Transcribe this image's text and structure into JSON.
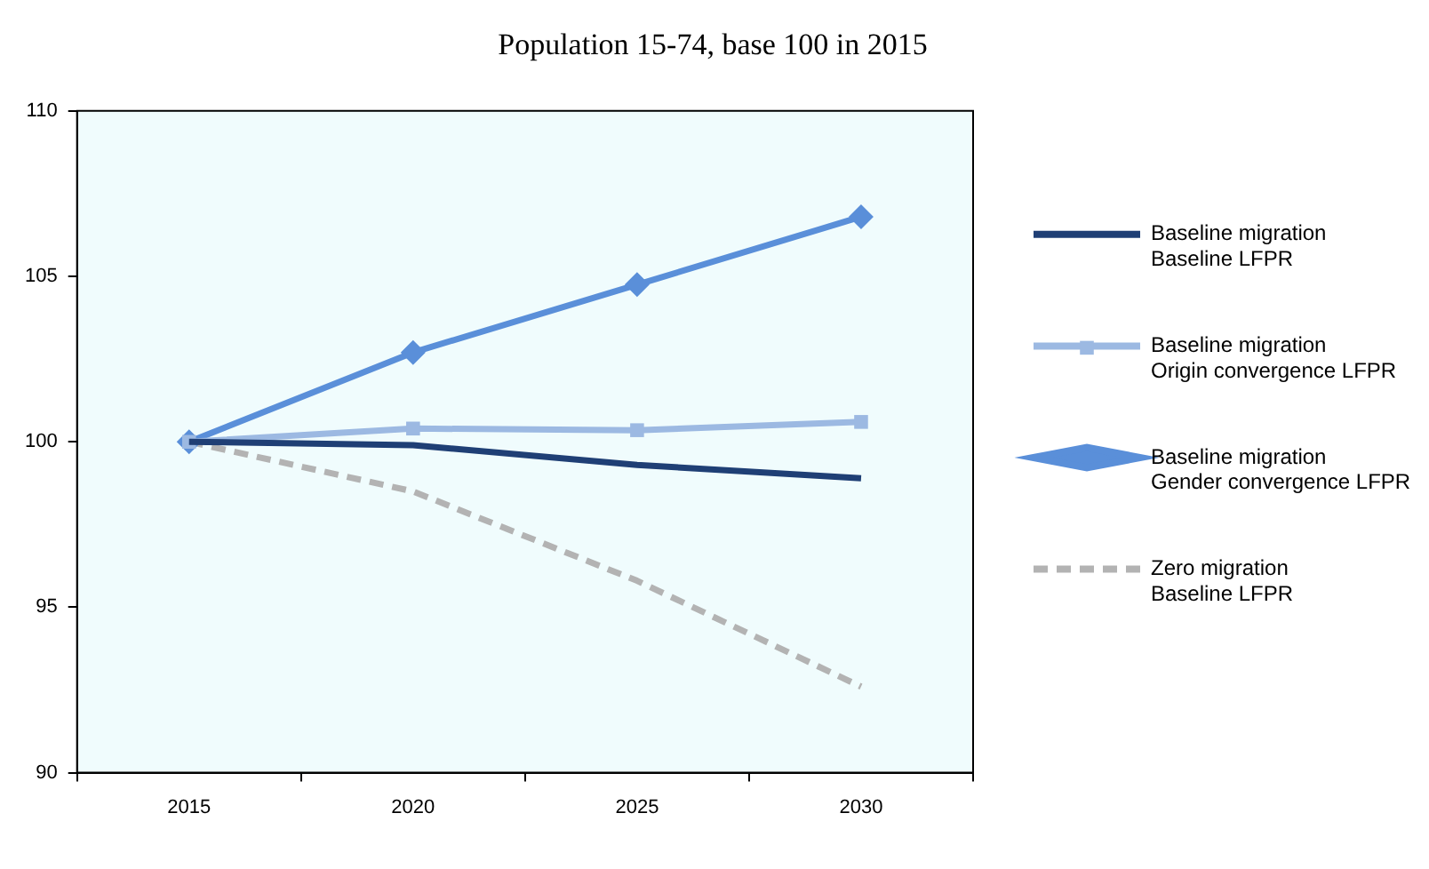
{
  "chart_data": {
    "type": "line",
    "title": "Population 15-74, base 100 in 2015",
    "categories": [
      "2015",
      "2020",
      "2025",
      "2030"
    ],
    "series": [
      {
        "name": "Baseline migration\nBaseline LFPR",
        "color": "#1f3f75",
        "values": [
          100,
          99.9,
          99.3,
          98.9
        ],
        "marker": "none",
        "line_style": "solid"
      },
      {
        "name": "Baseline migration\nOrigin convergence LFPR",
        "color": "#9cb9e2",
        "values": [
          100,
          100.4,
          100.35,
          100.6
        ],
        "marker": "square",
        "line_style": "solid"
      },
      {
        "name": "Baseline migration\nGender convergence LFPR",
        "color": "#5a8fd9",
        "values": [
          100,
          102.7,
          104.75,
          106.8
        ],
        "marker": "diamond",
        "line_style": "solid"
      },
      {
        "name": "Zero migration\nBaseline LFPR",
        "color": "#b3b3b3",
        "values": [
          100,
          98.5,
          95.8,
          92.6
        ],
        "marker": "none",
        "line_style": "dashed"
      }
    ],
    "ylim": [
      90,
      110
    ],
    "yticks": [
      90,
      95,
      100,
      105,
      110
    ],
    "grid": false,
    "legend": "right"
  }
}
